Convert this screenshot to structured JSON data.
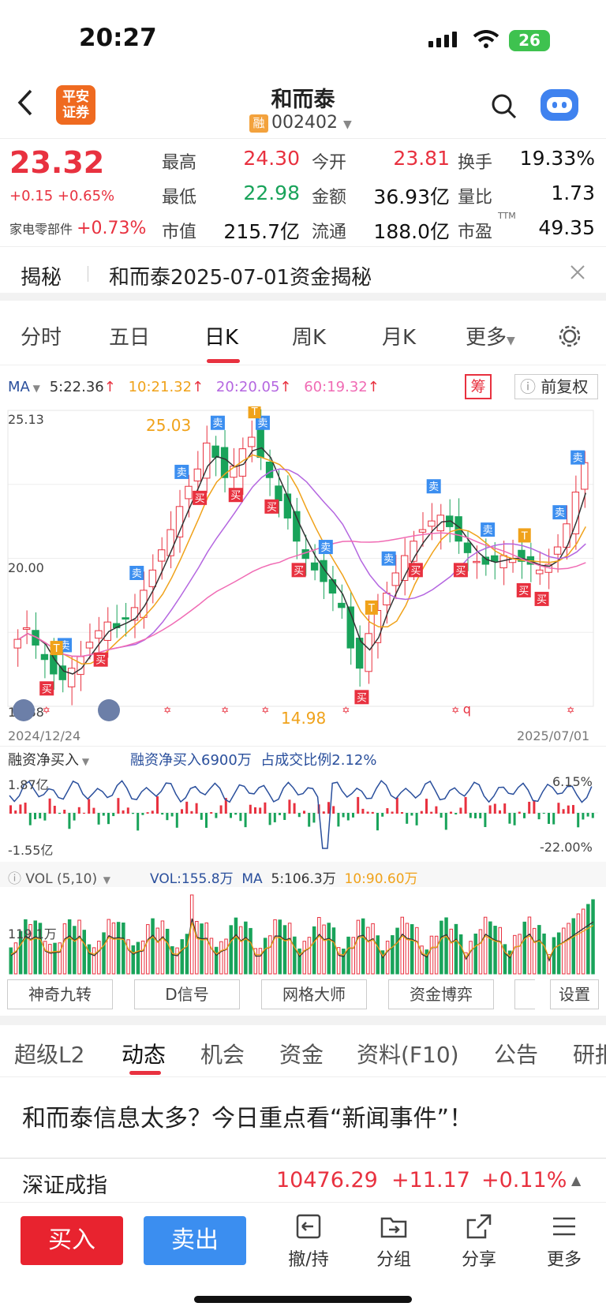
{
  "status": {
    "time": "20:27",
    "battery": "26"
  },
  "header": {
    "logo_line1": "平安",
    "logo_line2": "证券",
    "name": "和而泰",
    "rong": "融",
    "code": "002402"
  },
  "quote": {
    "price": "23.32",
    "change": "+0.15 +0.65%",
    "sector": "家电零部件",
    "sector_change": "+0.73%",
    "rows": [
      [
        {
          "label": "最高",
          "value": "24.30",
          "color": "red"
        },
        {
          "label": "今开",
          "value": "23.81",
          "color": "red"
        },
        {
          "label": "换手",
          "value": "19.33%",
          "color": "black"
        }
      ],
      [
        {
          "label": "最低",
          "value": "22.98",
          "color": "green"
        },
        {
          "label": "金额",
          "value": "36.93亿",
          "color": "black"
        },
        {
          "label": "量比",
          "value": "1.73",
          "color": "black"
        }
      ],
      [
        {
          "label": "市值",
          "value": "215.7亿",
          "color": "black"
        },
        {
          "label": "流通",
          "value": "188.0亿",
          "color": "black"
        },
        {
          "label": "市盈",
          "value": "49.35",
          "color": "black"
        }
      ]
    ],
    "pe_sup": "TTM"
  },
  "reveal": {
    "tag": "揭秘",
    "text": "和而泰2025-07-01资金揭秘"
  },
  "chart_tabs": [
    "分时",
    "五日",
    "日K",
    "周K",
    "月K",
    "更多"
  ],
  "active_chart_tab": 2,
  "ma": {
    "label": "MA",
    "ma5": "5:22.36",
    "ma10": "10:21.32",
    "ma20": "20:20.05",
    "ma60": "60:19.32",
    "chou": "筹",
    "fq": "前复权"
  },
  "chart_labels": {
    "y_top": "25.13",
    "y_mid": "20.00",
    "y_low": "14.88",
    "high_mark": "25.03",
    "low_mark": "14.98",
    "date_start": "2024/12/24",
    "date_end": "2025/07/01",
    "buy": "买",
    "sell": "卖",
    "t": "T",
    "q": "q"
  },
  "financing": {
    "label": "融资净买入",
    "value": "融资净买入6900万",
    "ratio": "占成交比例2.12%",
    "top": "1.87亿",
    "bottom": "-1.55亿",
    "right_top": "6.15%",
    "right_bottom": "-22.00%"
  },
  "volume": {
    "label": "VOL (5,10)",
    "vol": "VOL:155.8万",
    "ma_label": "MA",
    "ma5": "5:106.3万",
    "ma10": "10:90.60万",
    "axis": "119.1万"
  },
  "tools": [
    "神奇九转",
    "D信号",
    "网格大师",
    "资金博弈",
    "设置"
  ],
  "info_tabs": [
    "超级L2",
    "动态",
    "机会",
    "资金",
    "资料(F10)",
    "公告",
    "研报"
  ],
  "active_info_tab": 1,
  "headline": "和而泰信息太多？今日重点看“新闻事件”！",
  "index": {
    "name": "深证成指",
    "value": "10476.29",
    "change": "+11.17",
    "pct": "+0.11%"
  },
  "actions": {
    "buy": "买入",
    "sell": "卖出",
    "items": [
      "撤/持",
      "分组",
      "分享",
      "更多"
    ]
  },
  "colors": {
    "up": "#e8313f",
    "down": "#19a35a",
    "ma5": "#333333",
    "ma10": "#f0a21a",
    "ma20": "#b466e0",
    "ma60": "#f06bb4",
    "buy": "#e8232f",
    "sell": "#3b8ef0"
  },
  "chart_data": {
    "type": "candlestick",
    "x_range": [
      "2024/12/24",
      "2025/07/01"
    ],
    "ylim": [
      14.88,
      25.13
    ],
    "high": 25.03,
    "low": 14.98,
    "close_series": [
      17.2,
      17.6,
      17.0,
      16.5,
      16.0,
      15.8,
      16.2,
      16.6,
      17.1,
      17.5,
      17.8,
      17.6,
      17.9,
      18.3,
      18.9,
      19.6,
      20.3,
      21.0,
      21.8,
      22.5,
      23.1,
      24.0,
      23.5,
      22.8,
      23.2,
      23.8,
      24.2,
      23.5,
      22.8,
      22.0,
      21.4,
      20.6,
      20.0,
      19.6,
      19.2,
      18.8,
      18.3,
      16.9,
      16.2,
      17.4,
      18.2,
      18.8,
      19.5,
      20.1,
      20.6,
      21.0,
      21.3,
      21.5,
      21.1,
      20.6,
      20.2,
      19.9,
      19.8,
      19.9,
      20.1,
      20.0,
      19.9,
      19.8,
      19.6,
      19.8,
      20.4,
      21.2,
      22.3,
      23.32
    ]
  }
}
